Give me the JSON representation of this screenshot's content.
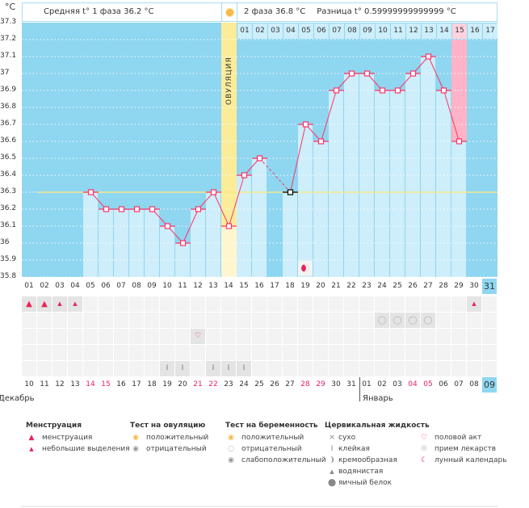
{
  "header": {
    "unit": "°C",
    "phase1": "Средняя t° 1 фаза  36.2 °C",
    "phase2": "2 фаза  36.8 °C",
    "diff": "Разница t°  0.59999999999999 °C",
    "ovulation_label": "ОВУЛЯЦИЯ"
  },
  "colors": {
    "plot_bg": "#8fd6f0",
    "bar": "#cdeefa",
    "line": "#ff3366",
    "coverline": "#f5e88a",
    "ovulation": "#fbec9a",
    "highlight": "#ffb3c6"
  },
  "chart_data": {
    "type": "line",
    "x": [
      1,
      2,
      3,
      4,
      5,
      6,
      7,
      8,
      9,
      10,
      11,
      12,
      13,
      14,
      15,
      16,
      17,
      18,
      19,
      20,
      21,
      22,
      23,
      24,
      25,
      26,
      27,
      28,
      29,
      30,
      31
    ],
    "x_tick_labels": [
      "01",
      "02",
      "03",
      "04",
      "05",
      "06",
      "07",
      "08",
      "09",
      "10",
      "11",
      "12",
      "13",
      "14",
      "15",
      "16",
      "17",
      "18",
      "19",
      "20",
      "21",
      "22",
      "23",
      "24",
      "25",
      "26",
      "27",
      "28",
      "29",
      "30",
      "31"
    ],
    "series": [
      {
        "values": [
          null,
          null,
          null,
          null,
          36.3,
          36.2,
          36.2,
          36.2,
          36.2,
          36.1,
          36.0,
          36.2,
          36.3,
          36.1,
          36.4,
          36.5,
          null,
          36.3,
          36.7,
          36.6,
          36.9,
          37.0,
          37.0,
          36.9,
          36.9,
          37.0,
          37.1,
          36.9,
          36.6,
          null,
          null
        ]
      }
    ],
    "excluded_days": [
      18
    ],
    "ylabel": "°C",
    "ylim": [
      35.8,
      37.3
    ],
    "yticks": [
      "37.3",
      "37.2",
      "37.1",
      "37",
      "36.9",
      "36.8",
      "36.7",
      "36.6",
      "36.5",
      "36.4",
      "36.3",
      "36.2",
      "36.1",
      "36",
      "35.9",
      "35.8"
    ],
    "coverline": 36.3,
    "ovulation_day": 14,
    "highlight_day": 29,
    "grid": true,
    "post_ovulation_day_labels": [
      "01",
      "02",
      "03",
      "04",
      "05",
      "06",
      "07",
      "08",
      "09",
      "10",
      "11",
      "12",
      "13",
      "14",
      "15",
      "16",
      "17"
    ],
    "highlight_post_day": "15"
  },
  "moon_day": 19,
  "rows": {
    "menstruation": {
      "1": "heavy",
      "2": "heavy",
      "3": "light",
      "4": "light",
      "30": "light"
    },
    "pregnancy_test": {
      "24": "negative",
      "25": "negative",
      "26": "negative",
      "27": "negative"
    },
    "intercourse": {
      "12": "heart"
    },
    "medication": {},
    "cervical": {
      "10": "sticky",
      "11": "sticky",
      "13": "sticky",
      "14": "sticky",
      "15": "sticky"
    }
  },
  "dates": [
    "10",
    "11",
    "12",
    "13",
    "14",
    "15",
    "16",
    "17",
    "18",
    "19",
    "20",
    "21",
    "22",
    "23",
    "24",
    "25",
    "26",
    "27",
    "28",
    "29",
    "30",
    "31",
    "01",
    "02",
    "03",
    "04",
    "05",
    "06",
    "07",
    "08",
    "09"
  ],
  "weekend_dates": [
    4,
    5,
    11,
    12,
    18,
    19,
    25,
    26
  ],
  "today_index": 30,
  "months": [
    "Декабрь",
    "Январь"
  ],
  "legend": {
    "menstruation": {
      "title": "Менструация",
      "items": [
        "менструация",
        "небольшие выделения"
      ]
    },
    "ovulation_test": {
      "title": "Тест на овуляцию",
      "items": [
        "положительный",
        "отрицательный"
      ]
    },
    "pregnancy_test": {
      "title": "Тест на беременность",
      "items": [
        "положительный",
        "отрицательный",
        "слабоположительный"
      ]
    },
    "cervical": {
      "title": "Цервикальная жидкость",
      "items": [
        "сухо",
        "клейкая",
        "кремообразная",
        "водянистая",
        "яичный белок"
      ]
    },
    "other": {
      "items": [
        "половой акт",
        "прием лекарств",
        "лунный календарь"
      ]
    }
  }
}
